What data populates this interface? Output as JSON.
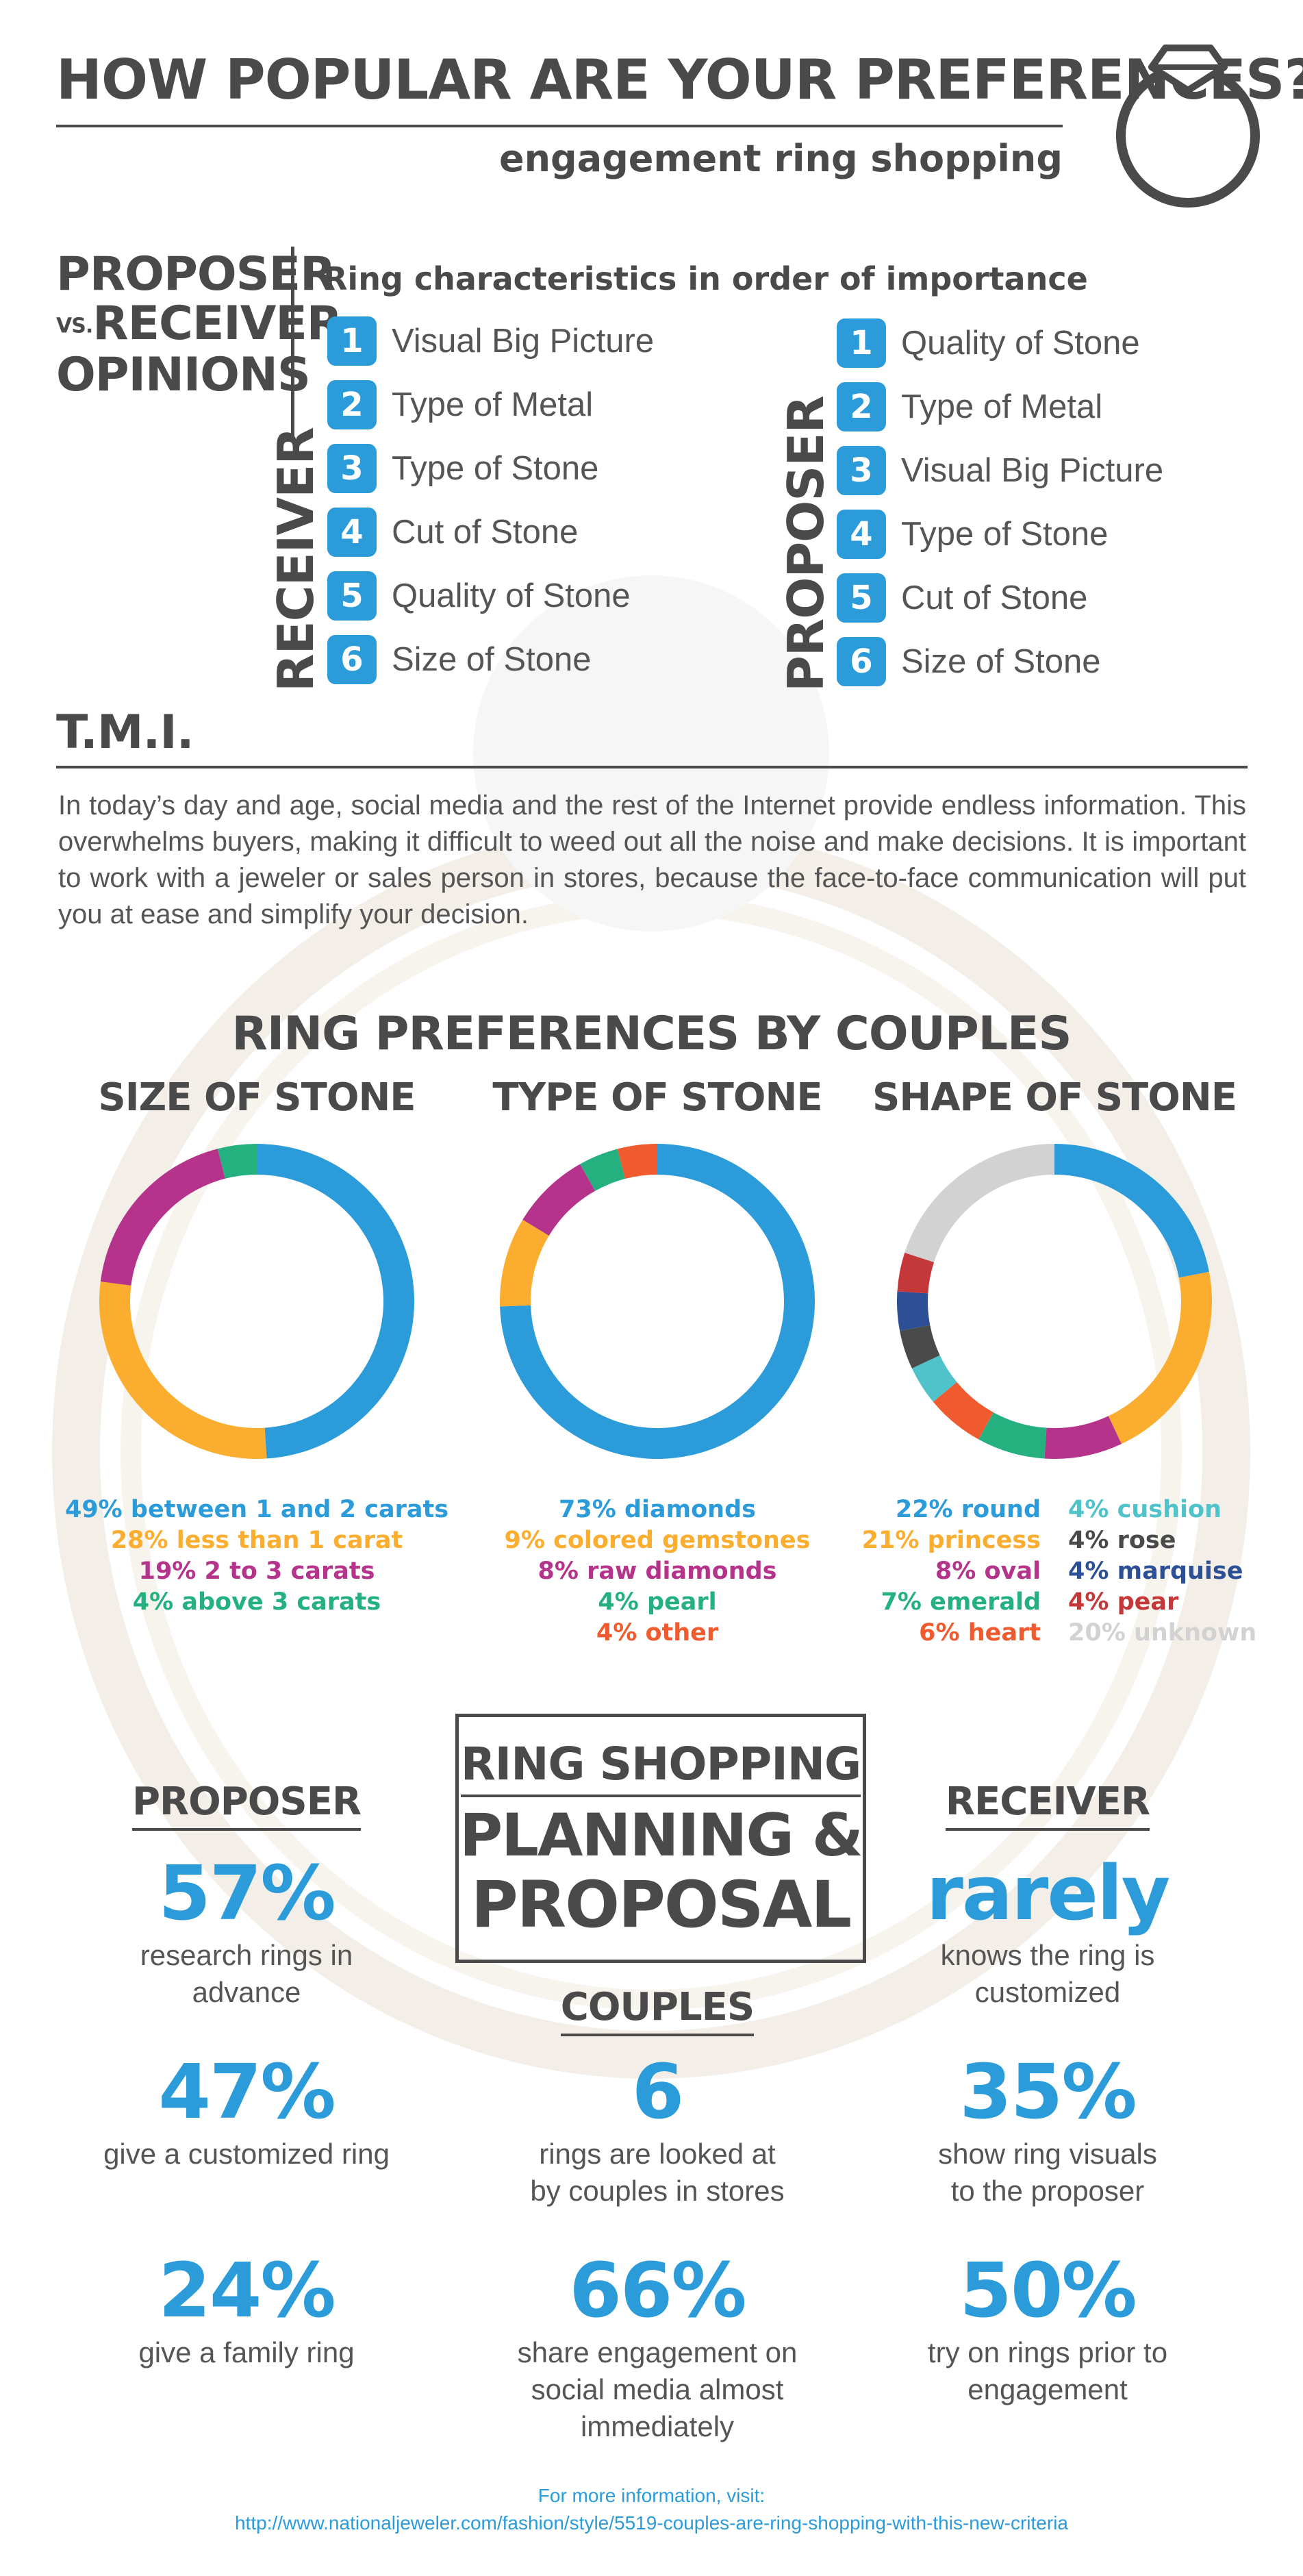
{
  "header": {
    "title": "HOW POPULAR ARE YOUR PREFERENCES?",
    "subtitle": "engagement ring shopping"
  },
  "opinions": {
    "proposer_word": "PROPOSER",
    "vs_word": "VS.",
    "receiver_word": "RECEIVER",
    "opinions_word": "OPINIONS",
    "heading": "Ring characteristics in order of importance",
    "receiver_label": "RECEIVER",
    "proposer_label": "PROPOSER",
    "receiver_list": [
      {
        "rank": "1",
        "label": "Visual Big Picture"
      },
      {
        "rank": "2",
        "label": "Type of Metal"
      },
      {
        "rank": "3",
        "label": "Type of Stone"
      },
      {
        "rank": "4",
        "label": "Cut of Stone"
      },
      {
        "rank": "5",
        "label": "Quality of Stone"
      },
      {
        "rank": "6",
        "label": "Size of Stone"
      }
    ],
    "proposer_list": [
      {
        "rank": "1",
        "label": "Quality of Stone"
      },
      {
        "rank": "2",
        "label": "Type of Metal"
      },
      {
        "rank": "3",
        "label": "Visual Big Picture"
      },
      {
        "rank": "4",
        "label": "Type of Stone"
      },
      {
        "rank": "5",
        "label": "Cut of Stone"
      },
      {
        "rank": "6",
        "label": "Size of Stone"
      }
    ]
  },
  "tmi": {
    "title": "T.M.I.",
    "body": "In today’s day and age, social media and the rest of the Internet provide endless information. This overwhelms buyers, making it difficult to weed out all the noise and make decisions. It is important to work with a jeweler or sales person in stores, because the face-to-face communication will put you at ease and simplify your decision."
  },
  "preferences_title": "RING PREFERENCES BY COUPLES",
  "colors": {
    "blue": "#2b9bd9",
    "orange": "#fbad2f",
    "magenta": "#b5338a",
    "green": "#25b07f",
    "red_orange": "#ef5b2e",
    "teal": "#4fc3c9",
    "dark_gray": "#4a4a4a",
    "navy": "#2c4f96",
    "red": "#c4383a",
    "light_gray": "#d2d2d2"
  },
  "chart_data": [
    {
      "type": "pie",
      "title": "SIZE OF STONE",
      "slices": [
        {
          "label": "49% between 1 and 2 carats",
          "value": 49,
          "color": "#2b9bd9"
        },
        {
          "label": "28% less than 1 carat",
          "value": 28,
          "color": "#fbad2f"
        },
        {
          "label": "19% 2 to 3 carats",
          "value": 19,
          "color": "#b5338a"
        },
        {
          "label": "4% above 3 carats",
          "value": 4,
          "color": "#25b07f"
        }
      ]
    },
    {
      "type": "pie",
      "title": "TYPE OF STONE",
      "slices": [
        {
          "label": "73% diamonds",
          "value": 73,
          "color": "#2b9bd9"
        },
        {
          "label": "9% colored gemstones",
          "value": 9,
          "color": "#fbad2f"
        },
        {
          "label": "8% raw diamonds",
          "value": 8,
          "color": "#b5338a"
        },
        {
          "label": "4% pearl",
          "value": 4,
          "color": "#25b07f"
        },
        {
          "label": "4% other",
          "value": 4,
          "color": "#ef5b2e"
        }
      ]
    },
    {
      "type": "pie",
      "title": "SHAPE OF STONE",
      "slices": [
        {
          "label": "22% round",
          "value": 22,
          "color": "#2b9bd9"
        },
        {
          "label": "21% princess",
          "value": 21,
          "color": "#fbad2f"
        },
        {
          "label": "8% oval",
          "value": 8,
          "color": "#b5338a"
        },
        {
          "label": "7% emerald",
          "value": 7,
          "color": "#25b07f"
        },
        {
          "label": "6% heart",
          "value": 6,
          "color": "#ef5b2e"
        },
        {
          "label": "4% cushion",
          "value": 4,
          "color": "#4fc3c9"
        },
        {
          "label": "4% rose",
          "value": 4,
          "color": "#4a4a4a"
        },
        {
          "label": "4% marquise",
          "value": 4,
          "color": "#2c4f96"
        },
        {
          "label": "4% pear",
          "value": 4,
          "color": "#c4383a"
        },
        {
          "label": "20% unknown",
          "value": 20,
          "color": "#d2d2d2"
        }
      ]
    }
  ],
  "planning": {
    "box_line1": "RING SHOPPING",
    "box_line2": "PLANNING &",
    "box_line3": "PROPOSAL",
    "proposer": {
      "heading": "PROPOSER",
      "stats": [
        {
          "value": "57%",
          "text": "research rings in advance"
        },
        {
          "value": "47%",
          "text": "give a customized ring"
        },
        {
          "value": "24%",
          "text": "give a family ring"
        }
      ]
    },
    "couples": {
      "heading": "COUPLES",
      "stats": [
        {
          "value": "6",
          "text": "rings are looked at by couples in stores"
        },
        {
          "value": "66%",
          "text": "share engagement on social media almost immediately"
        }
      ]
    },
    "receiver": {
      "heading": "RECEIVER",
      "stats": [
        {
          "value": "rarely",
          "text": "knows the ring is customized"
        },
        {
          "value": "35%",
          "text": "show ring visuals to the proposer"
        },
        {
          "value": "50%",
          "text": "try on rings prior to engagement"
        }
      ]
    }
  },
  "footer": {
    "line1": "For more information, visit:",
    "url": "http://www.nationaljeweler.com/fashion/style/5519-couples-are-ring-shopping-with-this-new-criteria"
  }
}
